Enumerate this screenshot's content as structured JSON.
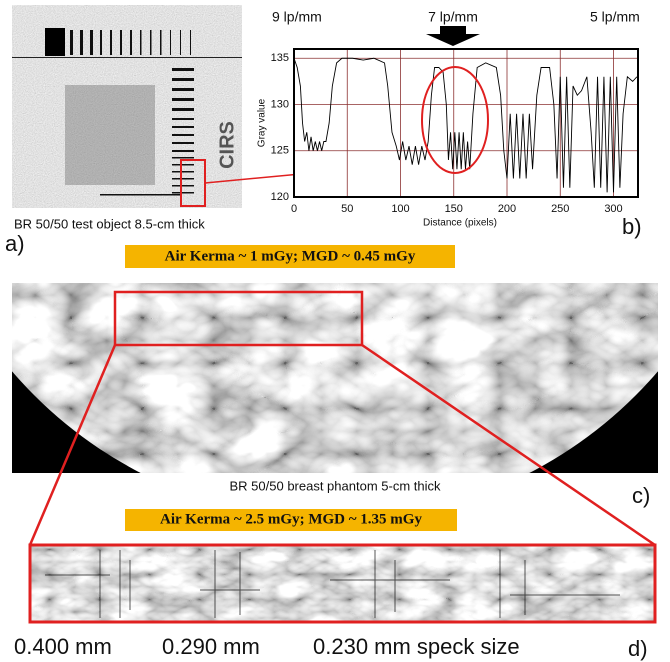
{
  "panel_a": {
    "caption": "BR 50/50 test object 8.5-cm thick",
    "label": "a)",
    "marker_text": "CIRS"
  },
  "chart_data": {
    "type": "line",
    "annotations": [
      "9 lp/mm",
      "7 lp/mm",
      "5 lp/mm"
    ],
    "xlabel": "Distance (pixels)",
    "ylabel": "Gray value",
    "panel_label": "b)",
    "x": [
      0,
      3,
      6,
      8,
      10,
      12,
      14,
      16,
      18,
      20,
      22,
      24,
      26,
      28,
      30,
      33,
      36,
      40,
      45,
      55,
      65,
      75,
      85,
      88,
      92,
      96,
      99,
      102,
      105,
      108,
      111,
      114,
      117,
      120,
      123,
      126,
      129,
      132,
      136,
      140,
      143,
      145,
      147,
      149,
      151,
      153,
      155,
      157,
      159,
      161,
      163,
      165,
      168,
      172,
      180,
      190,
      194,
      197,
      200,
      203,
      206,
      209,
      212,
      215,
      218,
      221,
      224,
      228,
      232,
      240,
      244,
      247,
      250,
      253,
      256,
      259,
      262,
      266,
      270,
      275,
      279,
      282,
      285,
      288,
      291,
      294,
      297,
      300,
      303,
      306,
      309,
      313,
      318,
      322
    ],
    "values": [
      135,
      134,
      132,
      128,
      126,
      127,
      125,
      126.5,
      125,
      126,
      125,
      126,
      125,
      126,
      126,
      128,
      132,
      134.5,
      135,
      135,
      134.8,
      135,
      134.5,
      132,
      127,
      125.5,
      124,
      126,
      124,
      125.5,
      123.5,
      125.5,
      123.5,
      125.5,
      124,
      126,
      131,
      134,
      134,
      133.5,
      130,
      124,
      127,
      123,
      127,
      123,
      127,
      123,
      127,
      123,
      126,
      123,
      129,
      134,
      134.5,
      134,
      131,
      125,
      122,
      129,
      122,
      129,
      122,
      129,
      122,
      129,
      123,
      131,
      134,
      134,
      130,
      122,
      133,
      121,
      133,
      121,
      132,
      131,
      131.5,
      133,
      127,
      121,
      133,
      121,
      133,
      120.5,
      133,
      120.5,
      133,
      121,
      129,
      133,
      132.5,
      133
    ],
    "color": "#000000",
    "xlim": [
      0,
      323
    ],
    "ylim": [
      120,
      136
    ],
    "xticks": [
      0,
      50,
      100,
      150,
      200,
      250,
      300
    ],
    "yticks": [
      120,
      125,
      130,
      135
    ],
    "grid": true,
    "grid_color": "#8b3030"
  },
  "dose_labels": [
    "Air Kerma ~ 1 mGy; MGD ~ 0.45 mGy",
    "Air Kerma ~ 2.5 mGy; MGD ~ 1.35 mGy"
  ],
  "panel_c": {
    "caption": "BR 50/50 breast phantom 5-cm thick",
    "label": "c)"
  },
  "panel_d": {
    "speck_sizes": [
      "0.400 mm",
      "0.290 mm",
      "0.230 mm speck size"
    ],
    "label": "d)"
  }
}
